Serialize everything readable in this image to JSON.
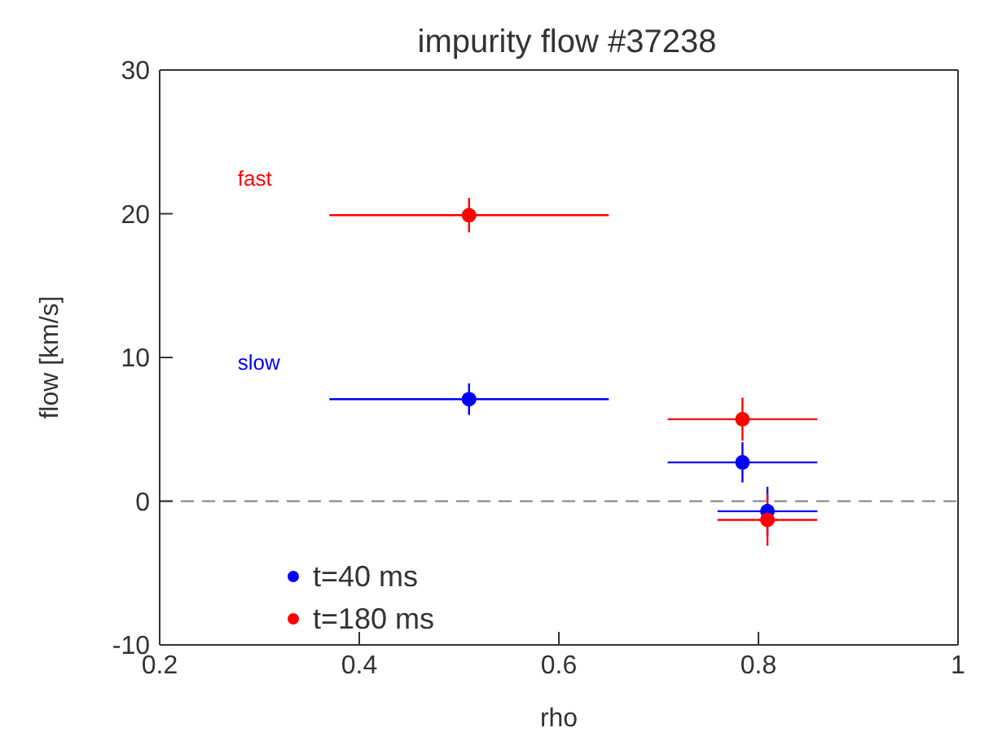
{
  "chart_data": {
    "type": "scatter",
    "title": "impurity flow #37238",
    "xlabel": "rho",
    "ylabel": "flow [km/s]",
    "series": [
      {
        "name": "t=40 ms",
        "color": "#0000ff",
        "x": [
          0.51,
          0.784,
          0.809
        ],
        "values": [
          7.1,
          2.7,
          -0.7
        ],
        "errors": [
          1.1,
          1.4,
          1.7
        ],
        "xerrors": [
          0.14,
          0.075,
          0.05
        ]
      },
      {
        "name": "t=180 ms",
        "color": "#ff0000",
        "x": [
          0.51,
          0.784,
          0.809
        ],
        "values": [
          19.9,
          5.7,
          -1.3
        ],
        "errors": [
          1.2,
          1.5,
          1.8
        ],
        "xerrors": [
          0.14,
          0.075,
          0.05
        ]
      }
    ],
    "annotations": [
      "fast",
      "slow"
    ],
    "ref_lines": [
      {
        "axis": "y",
        "value": 0,
        "line_style": "dashed",
        "color": "#808080"
      }
    ],
    "xlim": [
      0.2,
      1.0
    ],
    "xticks": [
      0.2,
      0.4,
      0.6,
      0.8,
      1.0
    ],
    "ylim": [
      -10,
      30
    ],
    "yticks": [
      -10,
      0,
      10,
      20,
      30
    ],
    "legend": "bottom left",
    "marker": "circle"
  }
}
